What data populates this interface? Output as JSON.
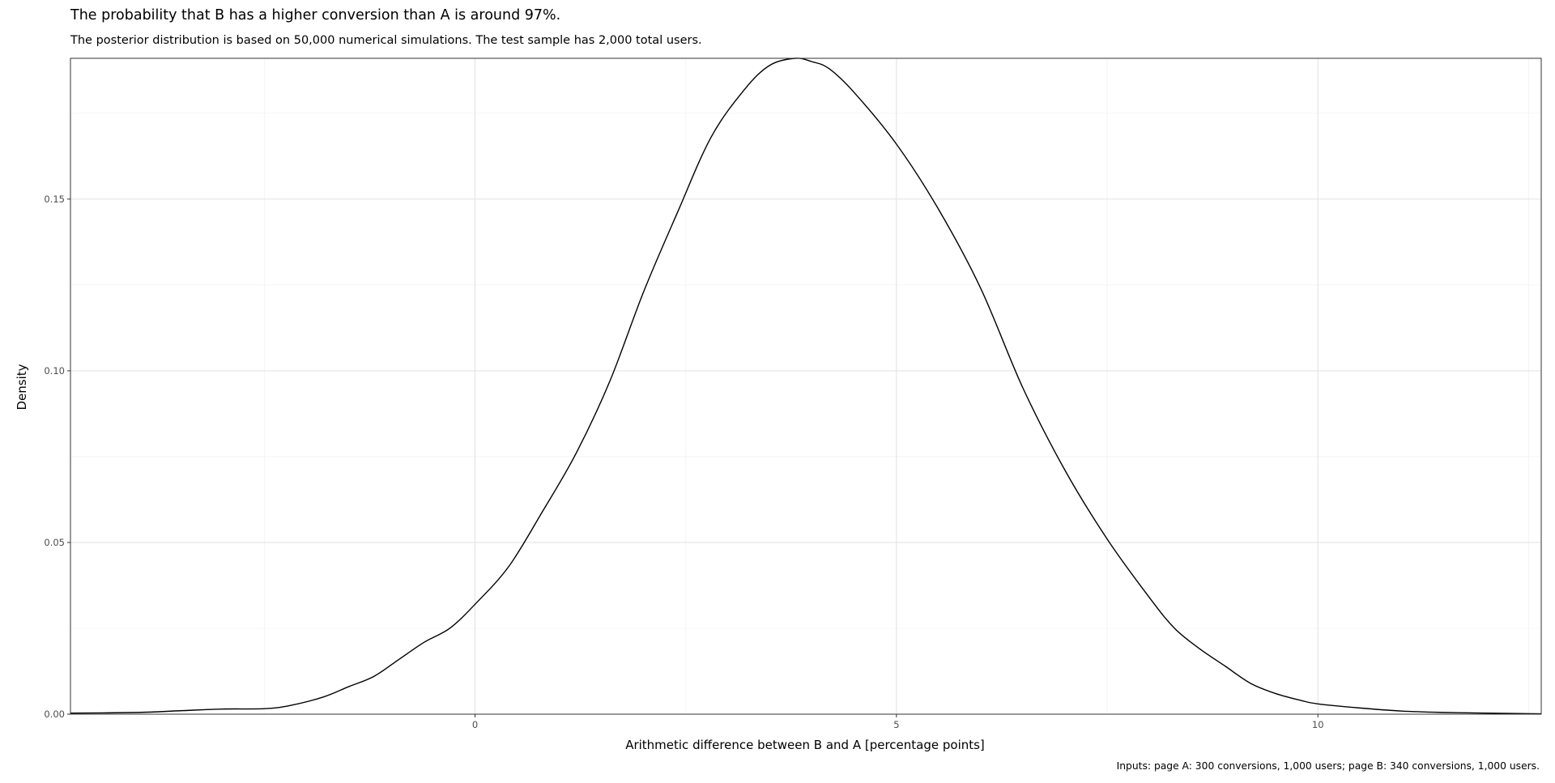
{
  "chart_data": {
    "type": "area",
    "title": "The probability that B has a higher conversion than A is around 97%.",
    "subtitle": "The posterior distribution is based on 50,000 numerical simulations. The test sample has 2,000 total users.",
    "caption": "Inputs: page A: 300 conversions, 1,000 users; page B: 340 conversions, 1,000 users.",
    "xlabel": "Arithmetic difference between B and A [percentage points]",
    "ylabel": "Density",
    "xlim": [
      -4.8,
      12.65
    ],
    "ylim": [
      0,
      0.191
    ],
    "x_ticks": [
      0,
      5,
      10
    ],
    "x_tick_labels": [
      "0",
      "5",
      "10"
    ],
    "y_ticks": [
      0,
      0.05,
      0.1,
      0.15
    ],
    "y_tick_labels": [
      "0.00",
      "0.05",
      "0.10",
      "0.15"
    ],
    "grid": true,
    "series": [
      {
        "x": [
          -4.8,
          -4.0,
          -3.5,
          -3.0,
          -2.5,
          -2.2,
          -1.8,
          -1.5,
          -1.2,
          -0.9,
          -0.6,
          -0.3,
          0.0,
          0.4,
          0.8,
          1.2,
          1.6,
          2.0,
          2.4,
          2.8,
          3.2,
          3.5,
          3.8,
          4.0,
          4.2,
          4.5,
          5.0,
          5.5,
          6.0,
          6.5,
          7.0,
          7.5,
          8.0,
          8.3,
          8.6,
          8.9,
          9.2,
          9.5,
          9.8,
          10.0,
          10.5,
          11.0,
          11.5,
          12.0,
          12.65
        ],
        "y": [
          0.0003,
          0.0005,
          0.001,
          0.0015,
          0.0016,
          0.0025,
          0.005,
          0.008,
          0.011,
          0.016,
          0.021,
          0.025,
          0.032,
          0.043,
          0.059,
          0.076,
          0.097,
          0.123,
          0.146,
          0.168,
          0.182,
          0.189,
          0.191,
          0.19,
          0.188,
          0.181,
          0.166,
          0.147,
          0.124,
          0.095,
          0.071,
          0.051,
          0.034,
          0.025,
          0.019,
          0.014,
          0.009,
          0.006,
          0.004,
          0.003,
          0.0018,
          0.0009,
          0.0005,
          0.0003,
          0.0001
        ]
      }
    ]
  }
}
